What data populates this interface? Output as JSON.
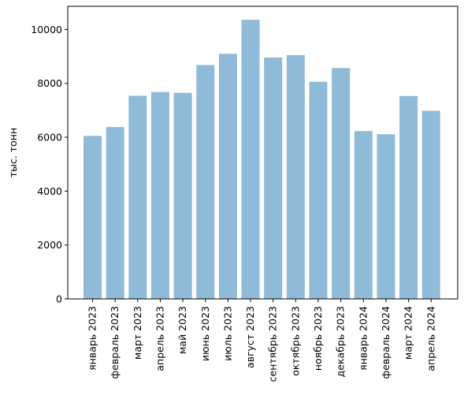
{
  "chart_data": {
    "type": "bar",
    "title": "",
    "xlabel": "",
    "ylabel": "тыс. тонн",
    "categories": [
      "январь 2023",
      "февраль 2023",
      "март 2023",
      "апрель 2023",
      "май 2023",
      "июнь 2023",
      "июль 2023",
      "август 2023",
      "сентябрь 2023",
      "октябрь 2023",
      "ноябрь 2023",
      "декабрь 2023",
      "январь 2024",
      "февраль 2024",
      "март 2024",
      "апрель 2024"
    ],
    "values": [
      6050,
      6380,
      7540,
      7680,
      7650,
      8680,
      9100,
      10360,
      8960,
      9050,
      8060,
      8570,
      6230,
      6110,
      7530,
      6980
    ],
    "ylim": [
      0,
      10860
    ],
    "yticks": [
      0,
      2000,
      4000,
      6000,
      8000,
      10000
    ],
    "ytick_labels": [
      "0",
      "2000",
      "4000",
      "6000",
      "8000",
      "10000"
    ],
    "grid": false,
    "bar_color": "#8fbbd9"
  }
}
